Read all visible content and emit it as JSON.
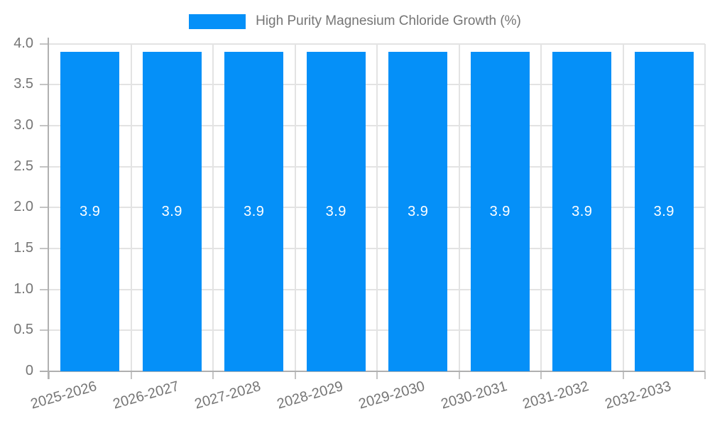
{
  "legend": {
    "label": "High Purity Magnesium Chloride Growth (%)"
  },
  "chart_data": {
    "type": "bar",
    "title": "High Purity Magnesium Chloride Growth (%)",
    "categories": [
      "2025-2026",
      "2026-2027",
      "2027-2028",
      "2028-2029",
      "2029-2030",
      "2030-2031",
      "2031-2032",
      "2032-2033"
    ],
    "values": [
      3.9,
      3.9,
      3.9,
      3.9,
      3.9,
      3.9,
      3.9,
      3.9
    ],
    "bar_labels": [
      "3.9",
      "3.9",
      "3.9",
      "3.9",
      "3.9",
      "3.9",
      "3.9",
      "3.9"
    ],
    "xlabel": "",
    "ylabel": "",
    "ylim": [
      0,
      4.0
    ],
    "yticks": [
      0,
      0.5,
      1.0,
      1.5,
      2.0,
      2.5,
      3.0,
      3.5,
      4.0
    ],
    "ytick_labels": [
      "0",
      "0.5",
      "1.0",
      "1.5",
      "2.0",
      "2.5",
      "3.0",
      "3.5",
      "4.0"
    ],
    "grid": true,
    "legend_position": "top"
  },
  "colors": {
    "bar": "#0590f8",
    "bar_label": "#ffffff",
    "axis_text": "#757575",
    "grid_line": "#e3e3e3",
    "axis_line": "#b0b0b0",
    "tick_line": "#c4c4c4",
    "background": "#ffffff"
  }
}
